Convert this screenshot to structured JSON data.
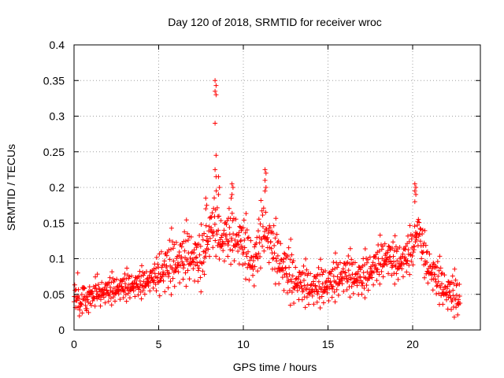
{
  "chart_data": {
    "type": "scatter",
    "title": "Day 120 of 2018, SRMTID for receiver wroc",
    "xlabel": "GPS time / hours",
    "ylabel": "SRMTID / TECUs",
    "xlim": [
      0,
      24
    ],
    "ylim": [
      0,
      0.4
    ],
    "xticks": [
      0,
      5,
      10,
      15,
      20
    ],
    "xtick_labels": [
      "0",
      "5",
      "10",
      "15",
      "20"
    ],
    "yticks": [
      0,
      0.05,
      0.1,
      0.15,
      0.2,
      0.25,
      0.3,
      0.35,
      0.4
    ],
    "ytick_labels": [
      "0",
      "0.05",
      "0.1",
      "0.15",
      "0.2",
      "0.25",
      "0.3",
      "0.35",
      "0.4"
    ],
    "grid": true,
    "marker": "plus",
    "marker_color": "#ff0000",
    "sample_interval_hours": 0.02,
    "series": [
      {
        "name": "wroc",
        "envelope": {
          "x": [
            0,
            1,
            2,
            3,
            4,
            5,
            6,
            6.8,
            7.5,
            8,
            8.3,
            8.7,
            9.2,
            10,
            10.6,
            11.2,
            11.8,
            12.3,
            13,
            14,
            15,
            16,
            17,
            18,
            18.5,
            19,
            19.5,
            20,
            20.3,
            20.8,
            21.5,
            22,
            22.8
          ],
          "y": [
            0.045,
            0.048,
            0.052,
            0.058,
            0.062,
            0.075,
            0.09,
            0.1,
            0.09,
            0.13,
            0.145,
            0.12,
            0.13,
            0.115,
            0.085,
            0.14,
            0.105,
            0.085,
            0.065,
            0.055,
            0.06,
            0.075,
            0.068,
            0.09,
            0.1,
            0.09,
            0.095,
            0.11,
            0.14,
            0.09,
            0.065,
            0.05,
            0.04
          ]
        },
        "spread": [
          {
            "x_from": 0,
            "x_to": 5,
            "value": 0.015
          },
          {
            "x_from": 5,
            "x_to": 13,
            "value": 0.03
          },
          {
            "x_from": 13,
            "x_to": 23,
            "value": 0.022
          }
        ],
        "peaks": [
          {
            "x": 8.35,
            "y": [
              0.35,
              0.343,
              0.335,
              0.33,
              0.29,
              0.245,
              0.225,
              0.215
            ]
          },
          {
            "x": 8.55,
            "y": [
              0.215,
              0.2,
              0.19
            ]
          },
          {
            "x": 11.3,
            "y": [
              0.225,
              0.22,
              0.21,
              0.2,
              0.195
            ]
          },
          {
            "x": 20.15,
            "y": [
              0.205,
              0.2,
              0.195,
              0.19,
              0.18
            ]
          },
          {
            "x": 9.35,
            "y": [
              0.205,
              0.2,
              0.19
            ]
          },
          {
            "x": 7.8,
            "y": [
              0.185,
              0.175,
              0.17
            ]
          }
        ]
      }
    ]
  }
}
